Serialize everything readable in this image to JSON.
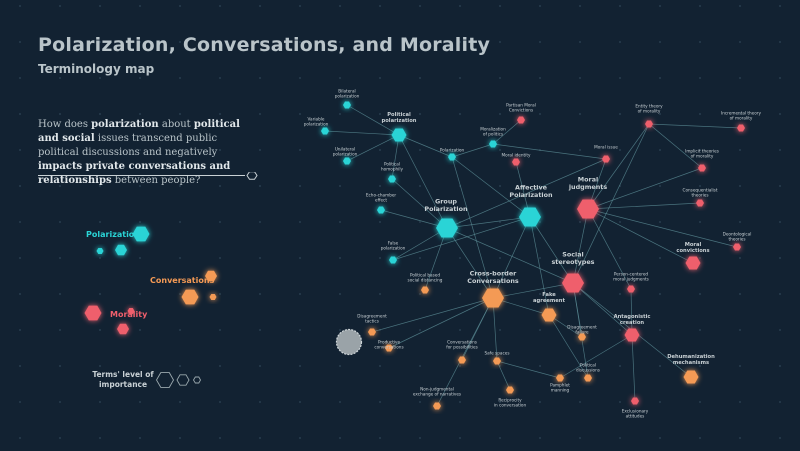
{
  "title": "Polarization, Conversations, and Morality",
  "subtitle": "Terminology map",
  "intro": {
    "p1": "How does ",
    "b1": "polarization",
    "p2": " about ",
    "b2": "political and social",
    "p3": " issues transcend public political discussions and negatively ",
    "b3": "impacts private conversations and relationships",
    "p4": " between people?"
  },
  "colors": {
    "background": "#122232",
    "polarization": "#2ad4d6",
    "conversations": "#f49a55",
    "morality": "#ef5f6c",
    "link": "#5d8f98",
    "outline": "#9aa8ad"
  },
  "legend": {
    "categories": [
      {
        "label": "Polarization",
        "category": "polarization"
      },
      {
        "label": "Conversations",
        "category": "conversations"
      },
      {
        "label": "Morality",
        "category": "morality"
      }
    ],
    "importance_label": "Terms' level of importance",
    "importance_levels": 3
  },
  "nodes": [
    {
      "id": "group",
      "label": "Group\nPolarization",
      "cat": "polarization",
      "level": 3
    },
    {
      "id": "affective",
      "label": "Affective\nPolarization",
      "cat": "polarization",
      "level": 3
    },
    {
      "id": "political",
      "label": "Political\npolarization",
      "cat": "polarization",
      "level": 2
    },
    {
      "id": "bilateral",
      "label": "Bilateral\npolarization",
      "cat": "polarization",
      "level": 1
    },
    {
      "id": "variable",
      "label": "Variable\npolarization",
      "cat": "polarization",
      "level": 1
    },
    {
      "id": "unilateral",
      "label": "Unilateral\npolarization",
      "cat": "polarization",
      "level": 1
    },
    {
      "id": "polarization",
      "label": "Polarization",
      "cat": "polarization",
      "level": 1
    },
    {
      "id": "moralization",
      "label": "Moralization\nof politics",
      "cat": "polarization",
      "level": 1
    },
    {
      "id": "homophily",
      "label": "Political\nhomophily",
      "cat": "polarization",
      "level": 1
    },
    {
      "id": "echo",
      "label": "Echo-chamber\neffect",
      "cat": "polarization",
      "level": 1
    },
    {
      "id": "false",
      "label": "False\npolarization",
      "cat": "polarization",
      "level": 1
    },
    {
      "id": "crossborder",
      "label": "Cross-border\nConversations",
      "cat": "conversations",
      "level": 3
    },
    {
      "id": "fake",
      "label": "Fake\nagreement",
      "cat": "conversations",
      "level": 2
    },
    {
      "id": "partybased",
      "label": "Political based\nsocial distancing",
      "cat": "conversations",
      "level": 1
    },
    {
      "id": "disagreementtactics",
      "label": "Disagreement\ntactics",
      "cat": "conversations",
      "level": 1
    },
    {
      "id": "productive",
      "label": "Productive\nconversations",
      "cat": "conversations",
      "level": 1
    },
    {
      "id": "possibilities",
      "label": "Conversations\nfor possibilities",
      "cat": "conversations",
      "level": 1
    },
    {
      "id": "safespaces",
      "label": "Safe spaces",
      "cat": "conversations",
      "level": 1
    },
    {
      "id": "nonjudgmental",
      "label": "Non-judgmental\nexchange of narratives",
      "cat": "conversations",
      "level": 1
    },
    {
      "id": "reciprocity",
      "label": "Reciprocity\nin conversation",
      "cat": "conversations",
      "level": 1
    },
    {
      "id": "pamphlet",
      "label": "Pamphlet\nmanning",
      "cat": "conversations",
      "level": 1
    },
    {
      "id": "discussions",
      "label": "Political\ndiscussions",
      "cat": "conversations",
      "level": 1
    },
    {
      "id": "failure",
      "label": "Disagreement\nfailure",
      "cat": "conversations",
      "level": 1
    },
    {
      "id": "dehumanization",
      "label": "Dehumanization\nmechanisms",
      "cat": "conversations",
      "level": 2
    },
    {
      "id": "moraljudgments",
      "label": "Moral\njudgments",
      "cat": "morality",
      "level": 3
    },
    {
      "id": "socialstereotypes",
      "label": "Social\nstereotypes",
      "cat": "morality",
      "level": 3
    },
    {
      "id": "moralissue",
      "label": "Moral issue",
      "cat": "morality",
      "level": 1
    },
    {
      "id": "entity",
      "label": "Entity theory\nof morality",
      "cat": "morality",
      "level": 1
    },
    {
      "id": "incremental",
      "label": "Incremental theory\nof morality",
      "cat": "morality",
      "level": 1
    },
    {
      "id": "implicit",
      "label": "Implicit theories\nof morality",
      "cat": "morality",
      "level": 1
    },
    {
      "id": "consequentialist",
      "label": "Consequentialist\ntheories",
      "cat": "morality",
      "level": 1
    },
    {
      "id": "deontological",
      "label": "Deontological\ntheories",
      "cat": "morality",
      "level": 1
    },
    {
      "id": "moralconvictions",
      "label": "Moral\nconvictions",
      "cat": "morality",
      "level": 2
    },
    {
      "id": "partisanmoral",
      "label": "Partisan Moral\nConvictions",
      "cat": "morality",
      "level": 1
    },
    {
      "id": "moralidentity",
      "label": "Moral identity",
      "cat": "morality",
      "level": 1
    },
    {
      "id": "personcentered",
      "label": "Person-centered\nmoral judgments",
      "cat": "morality",
      "level": 1
    },
    {
      "id": "antagonistic",
      "label": "Antagonistic\ncreation",
      "cat": "morality",
      "level": 2
    },
    {
      "id": "exclusionary",
      "label": "Exclusionary\nattitudes",
      "cat": "morality",
      "level": 1
    }
  ],
  "links": [
    [
      "political",
      "bilateral"
    ],
    [
      "political",
      "variable"
    ],
    [
      "political",
      "unilateral"
    ],
    [
      "political",
      "homophily"
    ],
    [
      "political",
      "group"
    ],
    [
      "political",
      "polarization"
    ],
    [
      "polarization",
      "moralization"
    ],
    [
      "polarization",
      "affective"
    ],
    [
      "polarization",
      "crossborder"
    ],
    [
      "moralization",
      "moralissue"
    ],
    [
      "moralization",
      "partisanmoral"
    ],
    [
      "group",
      "homophily"
    ],
    [
      "group",
      "echo"
    ],
    [
      "group",
      "false"
    ],
    [
      "group",
      "crossborder"
    ],
    [
      "group",
      "affective"
    ],
    [
      "group",
      "moralissue"
    ],
    [
      "group",
      "partybased"
    ],
    [
      "group",
      "socialstereotypes"
    ],
    [
      "affective",
      "moralidentity"
    ],
    [
      "affective",
      "crossborder"
    ],
    [
      "affective",
      "false"
    ],
    [
      "affective",
      "socialstereotypes"
    ],
    [
      "affective",
      "fake"
    ],
    [
      "crossborder",
      "disagreementtactics"
    ],
    [
      "crossborder",
      "productive"
    ],
    [
      "crossborder",
      "possibilities"
    ],
    [
      "crossborder",
      "safespaces"
    ],
    [
      "crossborder",
      "nonjudgmental"
    ],
    [
      "crossborder",
      "fake"
    ],
    [
      "crossborder",
      "socialstereotypes"
    ],
    [
      "safespaces",
      "reciprocity"
    ],
    [
      "safespaces",
      "pamphlet"
    ],
    [
      "moraljudgments",
      "entity"
    ],
    [
      "moraljudgments",
      "implicit"
    ],
    [
      "moraljudgments",
      "consequentialist"
    ],
    [
      "moraljudgments",
      "deontological"
    ],
    [
      "moraljudgments",
      "moralconvictions"
    ],
    [
      "moraljudgments",
      "personcentered"
    ],
    [
      "moraljudgments",
      "socialstereotypes"
    ],
    [
      "moraljudgments",
      "moralissue"
    ],
    [
      "entity",
      "incremental"
    ],
    [
      "entity",
      "implicit"
    ],
    [
      "entity",
      "socialstereotypes"
    ],
    [
      "socialstereotypes",
      "antagonistic"
    ],
    [
      "socialstereotypes",
      "dehumanization"
    ],
    [
      "socialstereotypes",
      "failure"
    ],
    [
      "socialstereotypes",
      "discussions"
    ],
    [
      "antagonistic",
      "exclusionary"
    ],
    [
      "antagonistic",
      "pamphlet"
    ],
    [
      "antagonistic",
      "personcentered"
    ],
    [
      "fake",
      "failure"
    ],
    [
      "fake",
      "discussions"
    ]
  ]
}
